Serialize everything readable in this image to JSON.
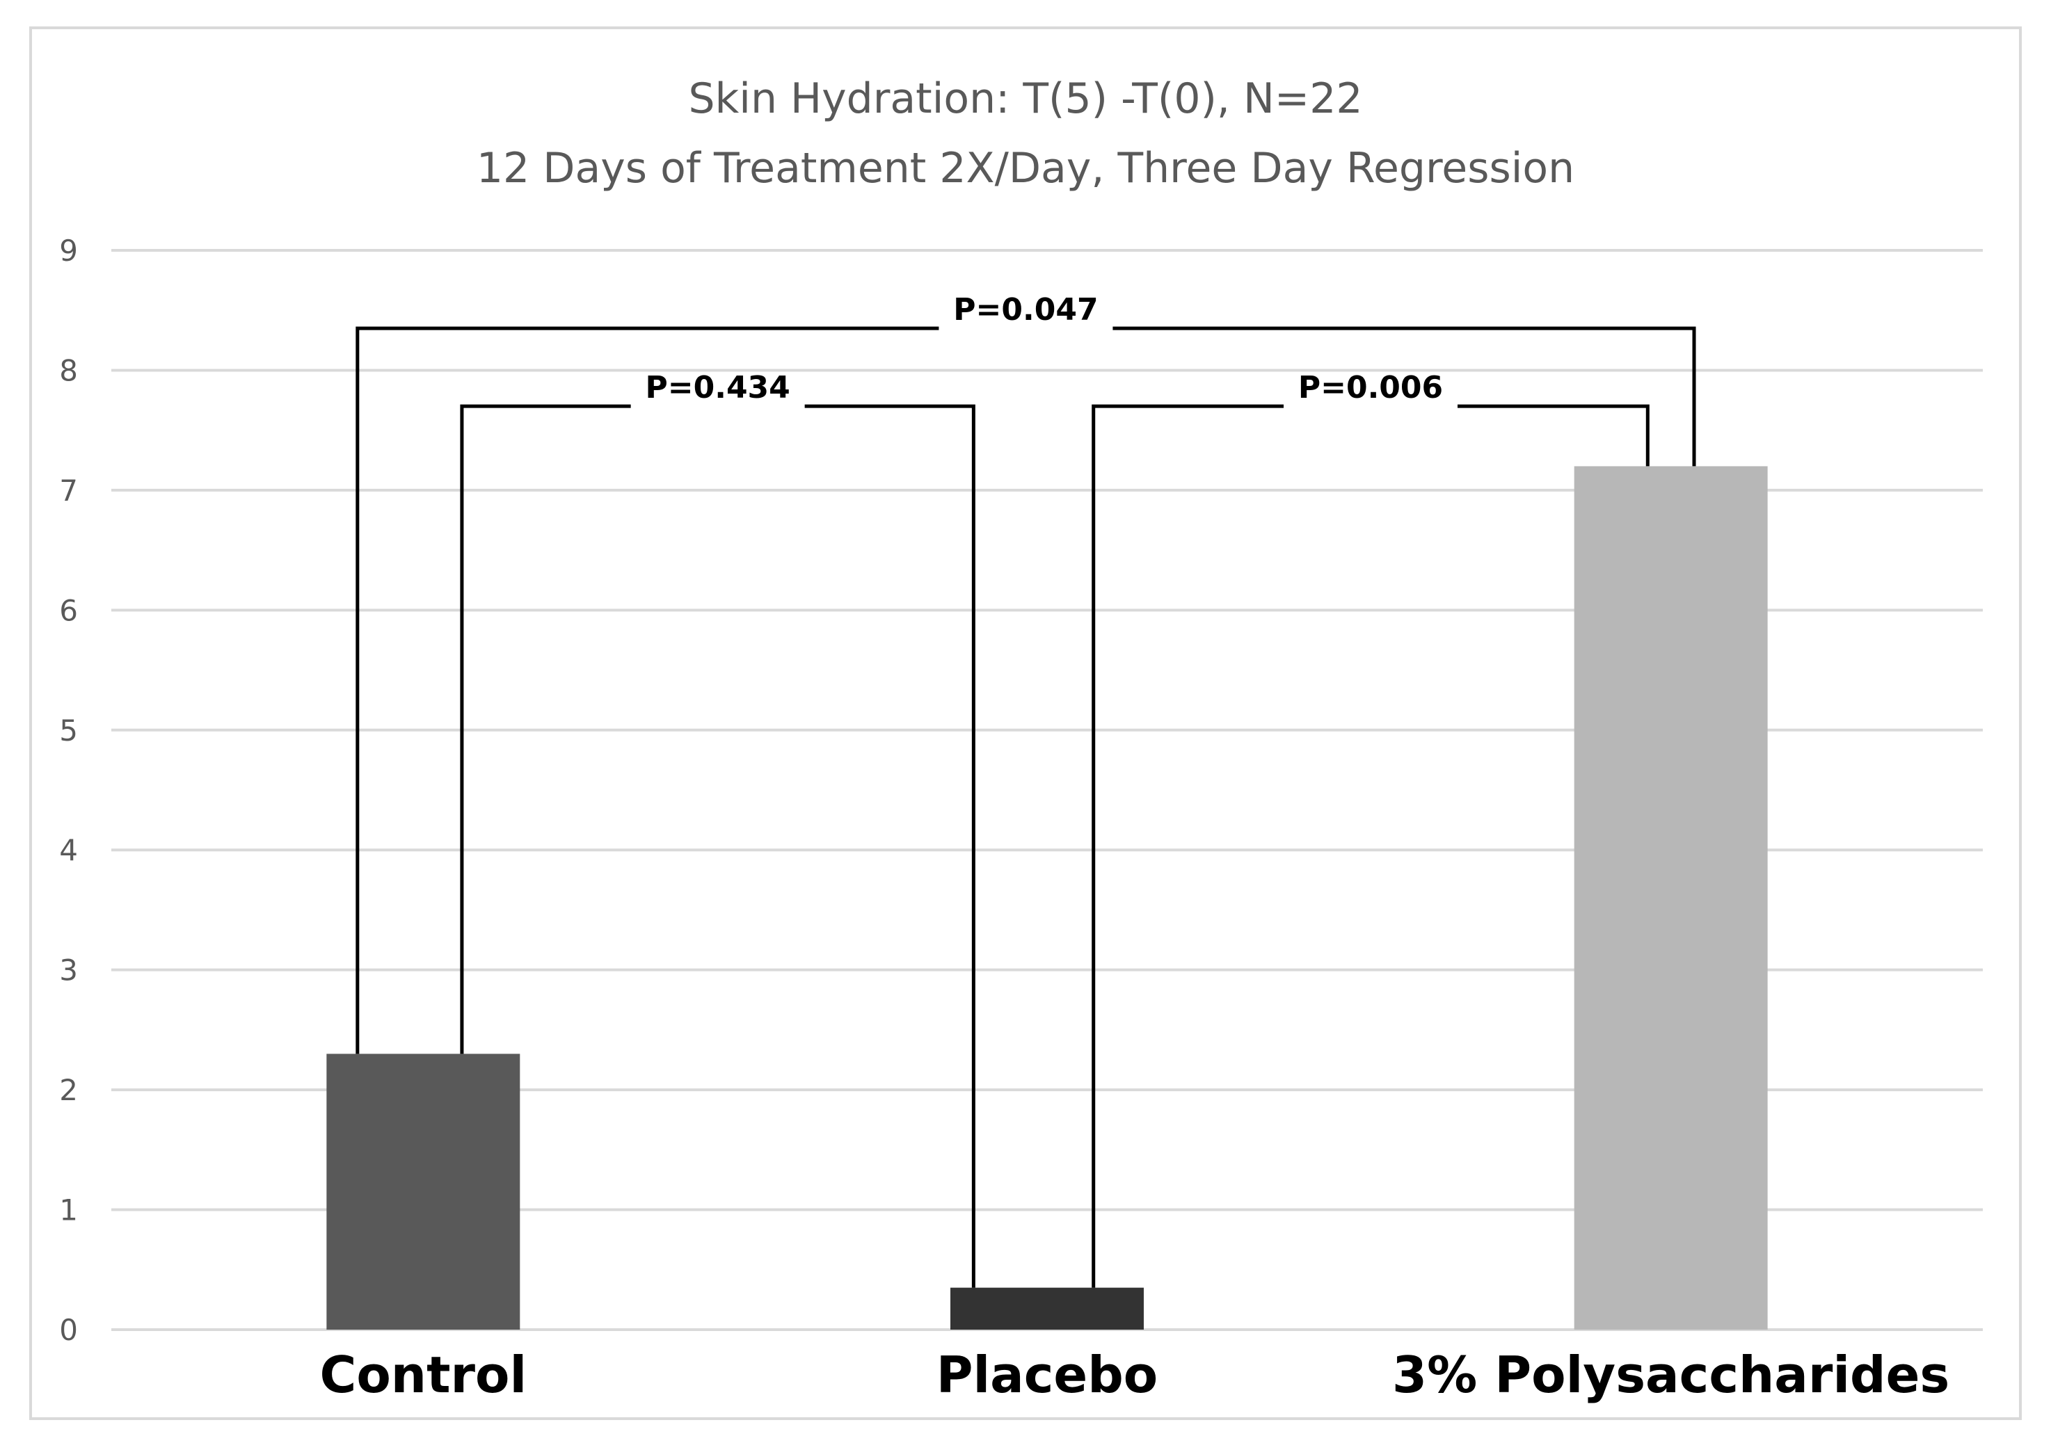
{
  "chart_data": {
    "type": "bar",
    "title": "Skin Hydration: T(5) -T(0), N=22",
    "subtitle": "12 Days of Treatment 2X/Day, Three Day Regression",
    "categories": [
      "Control",
      "Placebo",
      "3% Polysaccharides"
    ],
    "values": [
      2.3,
      0.35,
      7.2
    ],
    "colors": [
      "#595959",
      "#333333",
      "#b7b7b7"
    ],
    "ylim": [
      0,
      9
    ],
    "yticks": [
      0,
      1,
      2,
      3,
      4,
      5,
      6,
      7,
      8,
      9
    ],
    "grid": true,
    "legend": "none",
    "comparisons": [
      {
        "from": "Control",
        "to": "3% Polysaccharides",
        "label": "P=0.047",
        "level": 8.35
      },
      {
        "from": "Control",
        "to": "Placebo",
        "label": "P=0.434",
        "level": 7.7
      },
      {
        "from": "Placebo",
        "to": "3% Polysaccharides",
        "label": "P=0.006",
        "level": 7.7
      }
    ]
  }
}
